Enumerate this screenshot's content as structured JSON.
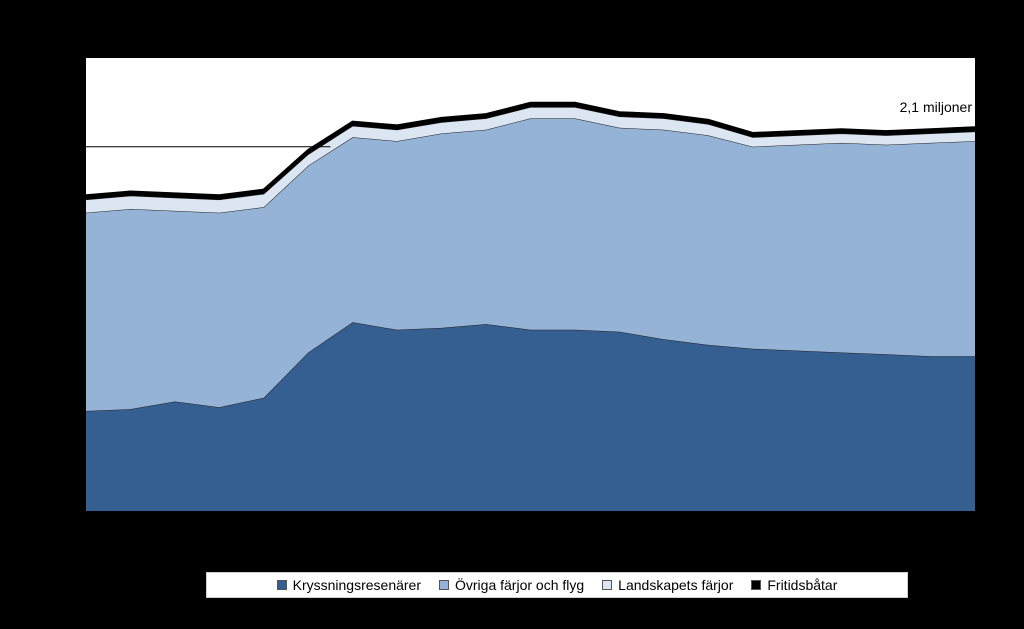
{
  "chart_data": {
    "type": "area",
    "stacked": true,
    "x_count": 21,
    "ylim": [
      0,
      2.4
    ],
    "grid": false,
    "reference_line": {
      "y": 1.93
    },
    "annotation": {
      "text": "2,1 miljoner"
    },
    "series": [
      {
        "name": "Kryssningsresenärer",
        "color": "#365f91",
        "values": [
          0.53,
          0.54,
          0.58,
          0.55,
          0.6,
          0.84,
          1.0,
          0.96,
          0.97,
          0.99,
          0.96,
          0.96,
          0.95,
          0.91,
          0.88,
          0.86,
          0.85,
          0.84,
          0.83,
          0.82,
          0.82
        ]
      },
      {
        "name": "Övriga färjor och flyg",
        "color": "#95b3d7",
        "values": [
          1.05,
          1.06,
          1.01,
          1.03,
          1.01,
          0.99,
          0.98,
          1.0,
          1.03,
          1.03,
          1.12,
          1.12,
          1.08,
          1.11,
          1.11,
          1.07,
          1.09,
          1.11,
          1.11,
          1.13,
          1.14
        ]
      },
      {
        "name": "Landskapets färjor",
        "color": "#dce6f2",
        "values": [
          0.07,
          0.07,
          0.07,
          0.07,
          0.07,
          0.06,
          0.06,
          0.06,
          0.06,
          0.06,
          0.06,
          0.06,
          0.06,
          0.06,
          0.06,
          0.05,
          0.05,
          0.05,
          0.05,
          0.05,
          0.05
        ]
      },
      {
        "name": "Fritidsbåtar",
        "color": "#000000",
        "values": [
          0.02,
          0.02,
          0.02,
          0.02,
          0.02,
          0.02,
          0.02,
          0.02,
          0.02,
          0.02,
          0.02,
          0.02,
          0.02,
          0.02,
          0.02,
          0.02,
          0.02,
          0.02,
          0.02,
          0.02,
          0.02
        ]
      }
    ],
    "legend": {
      "position": "bottom",
      "items": [
        "Kryssningsresenärer",
        "Övriga färjor och flyg",
        "Landskapets färjor",
        "Fritidsbåtar"
      ]
    }
  }
}
